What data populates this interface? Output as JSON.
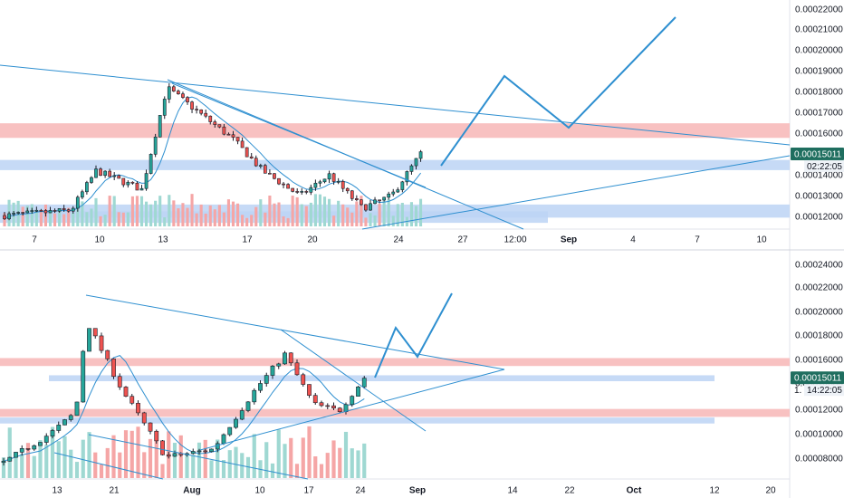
{
  "colors": {
    "up": "#26a69a",
    "down": "#ef5350",
    "vol_up": "#9fd8d2",
    "vol_down": "#f5a6a6",
    "line": "#2e8fd0",
    "red_zone": "#f7b6b6",
    "blue_zone": "#bcd4f5",
    "axis_text": "#131722",
    "price_badge": "#1f6e5f"
  },
  "chart_data": [
    {
      "type": "candlestick",
      "panel": "top",
      "y_axis": {
        "ticks": [
          "0.00022000",
          "0.00021000",
          "0.00020000",
          "0.00019000",
          "0.00018000",
          "0.00017000",
          "0.00016000",
          "0.00014000",
          "0.00013000",
          "0.00012000"
        ],
        "ylim": [
          0.000114,
          0.000224
        ]
      },
      "x_axis": {
        "ticks": [
          {
            "label": "7",
            "bold": false
          },
          {
            "label": "10",
            "bold": false
          },
          {
            "label": "13",
            "bold": false
          },
          {
            "label": "17",
            "bold": false
          },
          {
            "label": "20",
            "bold": false
          },
          {
            "label": "24",
            "bold": false
          },
          {
            "label": "27",
            "bold": false
          },
          {
            "label": "12:00",
            "bold": false
          },
          {
            "label": "Sep",
            "bold": true
          },
          {
            "label": "4",
            "bold": false
          },
          {
            "label": "7",
            "bold": false
          },
          {
            "label": "10",
            "bold": false
          }
        ]
      },
      "price_label": {
        "value": "0.00015011",
        "countdown": "02:22:05"
      },
      "zones": [
        {
          "kind": "resistance",
          "low": 0.0001578,
          "high": 0.0001648
        },
        {
          "kind": "support",
          "low": 0.0001423,
          "high": 0.0001472
        },
        {
          "kind": "support",
          "low": 0.0001195,
          "high": 0.0001258
        },
        {
          "kind": "support_blue",
          "low": 0.000117,
          "high": 0.0001225
        }
      ],
      "last_close": 0.00015011
    },
    {
      "type": "candlestick",
      "panel": "bottom",
      "y_axis": {
        "ticks": [
          "0.00024000",
          "0.00022000",
          "0.00020000",
          "0.00018000",
          "0.00016000",
          "0.00014000",
          "0.00012000",
          "0.00010000",
          "0.00008000"
        ],
        "ylim": [
          7.35e-05,
          0.0002455
        ]
      },
      "x_axis": {
        "ticks": [
          {
            "label": "13",
            "bold": false
          },
          {
            "label": "21",
            "bold": false
          },
          {
            "label": "Aug",
            "bold": true
          },
          {
            "label": "10",
            "bold": false
          },
          {
            "label": "17",
            "bold": false
          },
          {
            "label": "24",
            "bold": false
          },
          {
            "label": "Sep",
            "bold": true
          },
          {
            "label": "14",
            "bold": false
          },
          {
            "label": "22",
            "bold": false
          },
          {
            "label": "Oct",
            "bold": true
          },
          {
            "label": "12",
            "bold": false
          },
          {
            "label": "20",
            "bold": false
          }
        ]
      },
      "price_label": {
        "value": "0.00015011",
        "countdown": "14:22:05"
      },
      "price_label_partial": "1.",
      "zones": [
        {
          "kind": "resistance",
          "low": 0.000159,
          "high": 0.000165
        },
        {
          "kind": "support",
          "low": 0.0001475,
          "high": 0.000152
        },
        {
          "kind": "resistance",
          "low": 0.0001205,
          "high": 0.0001265
        },
        {
          "kind": "support",
          "low": 0.0001155,
          "high": 0.00012
        }
      ],
      "last_close": 0.00015011
    }
  ]
}
